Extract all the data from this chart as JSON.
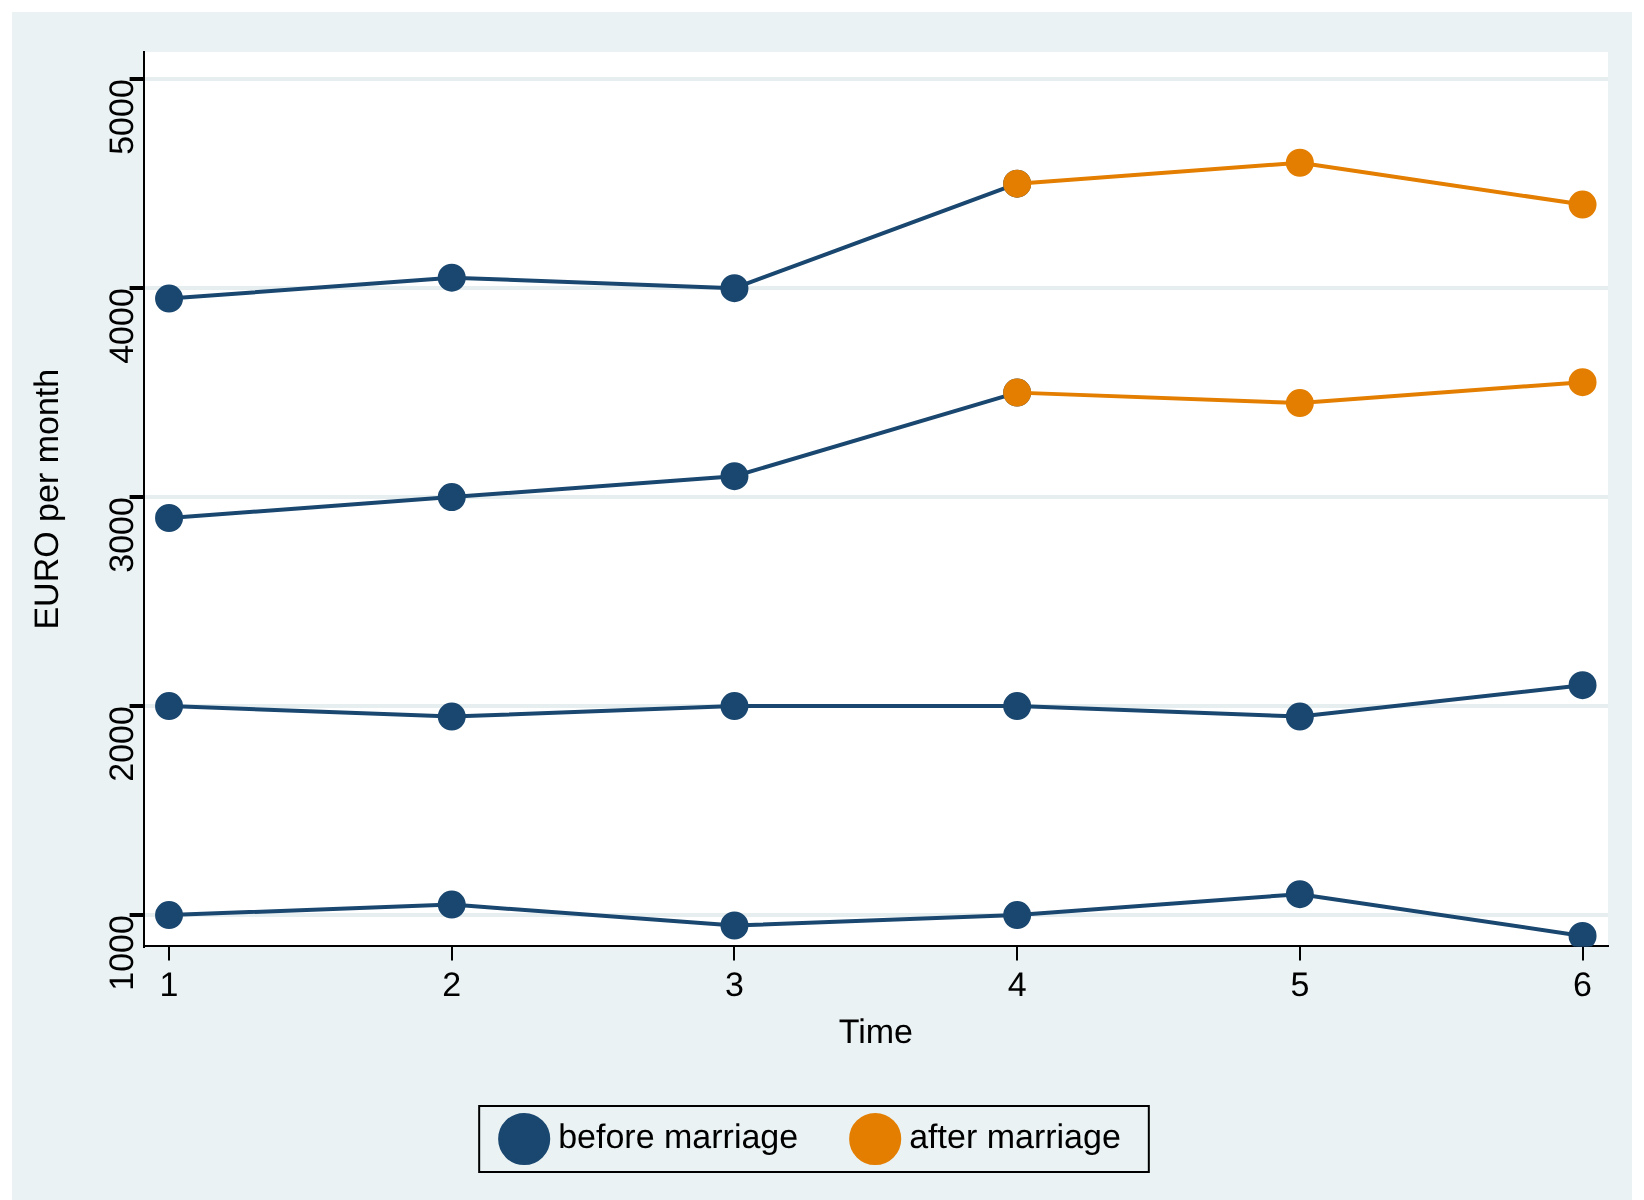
{
  "chart_data": {
    "type": "line",
    "xlabel": "Time",
    "ylabel": "EURO per month",
    "x": [
      1,
      2,
      3,
      4,
      5,
      6
    ],
    "series": [
      {
        "name": "before marriage",
        "color": "#1a476f",
        "values": [
          3950,
          4050,
          4000,
          4500,
          null,
          null
        ]
      },
      {
        "name": "after marriage",
        "color": "#e37e00",
        "values": [
          null,
          null,
          null,
          4500,
          4600,
          4400
        ]
      },
      {
        "color": "#1a476f",
        "values": [
          2900,
          3000,
          3100,
          3500,
          null,
          null
        ]
      },
      {
        "color": "#e37e00",
        "values": [
          null,
          null,
          null,
          3500,
          3450,
          3550
        ]
      },
      {
        "color": "#1a476f",
        "values": [
          2000,
          1950,
          2000,
          2000,
          1950,
          2100
        ]
      },
      {
        "color": "#1a476f",
        "values": [
          1000,
          1050,
          950,
          1000,
          1100,
          900
        ]
      }
    ],
    "xlim": [
      0.91,
      6.09
    ],
    "xticks": [
      1,
      2,
      3,
      4,
      5,
      6
    ],
    "ylim": [
      850,
      5130
    ],
    "yticks": [
      1000,
      2000,
      3000,
      4000,
      5000
    ],
    "grid": "y",
    "legend": "bottom",
    "marker": "circle",
    "line_style": "solid"
  }
}
